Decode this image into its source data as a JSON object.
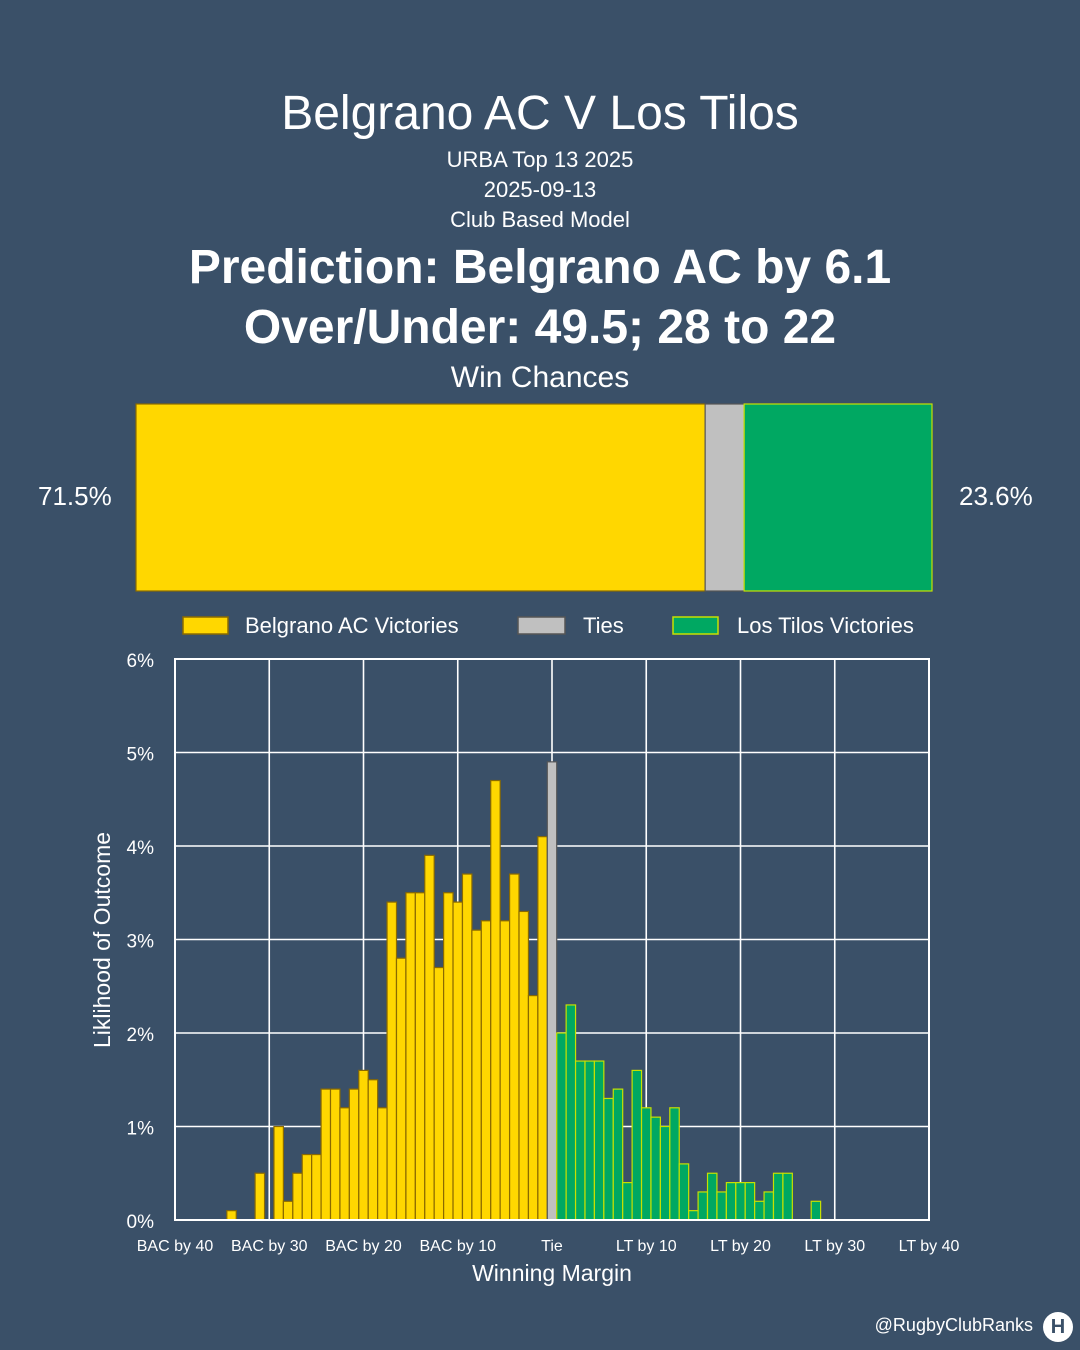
{
  "header": {
    "title": "Belgrano AC V Los Tilos",
    "competition": "URBA Top 13 2025",
    "date": "2025-09-13",
    "model": "Club Based Model",
    "prediction": "Prediction: Belgrano AC by 6.1",
    "over_under": "Over/Under: 49.5; 28 to 22"
  },
  "win_chances": {
    "title": "Win Chances",
    "home_label": "71.5%",
    "away_label": "23.6%",
    "home_fraction": 0.715,
    "tie_fraction": 0.049,
    "away_fraction": 0.236
  },
  "legend": {
    "home": "Belgrano AC Victories",
    "tie": "Ties",
    "away": "Los Tilos Victories"
  },
  "colors": {
    "background": "#3a5068",
    "home": "#ffd700",
    "home_edge": "#8a6a00",
    "tie": "#c0c0c0",
    "tie_edge": "#555555",
    "away": "#00a862",
    "away_edge": "#c8e000",
    "grid": "#ffffff"
  },
  "chart_data": {
    "type": "bar",
    "xlabel": "Winning Margin",
    "ylabel": "Liklihood of Outcome",
    "xlim": [
      -40,
      40
    ],
    "ylim": [
      0,
      6
    ],
    "y_ticks": [
      0,
      1,
      2,
      3,
      4,
      5,
      6
    ],
    "y_tick_labels": [
      "0%",
      "1%",
      "2%",
      "3%",
      "4%",
      "5%",
      "6%"
    ],
    "x_ticks": [
      -40,
      -30,
      -20,
      -10,
      0,
      10,
      20,
      30,
      40
    ],
    "x_tick_labels": [
      "BAC by 40",
      "BAC by 30",
      "BAC by 20",
      "BAC by 10",
      "Tie",
      "LT by 10",
      "LT by 20",
      "LT by 30",
      "LT by 40"
    ],
    "grid": true,
    "legend_position": "top",
    "series": [
      {
        "name": "Belgrano AC Victories",
        "x": [
          -34,
          -31,
          -29,
          -28,
          -27,
          -26,
          -25,
          -24,
          -23,
          -22,
          -21,
          -20,
          -19,
          -18,
          -17,
          -16,
          -15,
          -14,
          -13,
          -12,
          -11,
          -10,
          -9,
          -8,
          -7,
          -6,
          -5,
          -4,
          -3,
          -2,
          -1
        ],
        "values": [
          0.1,
          0.5,
          1.0,
          0.2,
          0.5,
          0.7,
          0.7,
          1.4,
          1.4,
          1.2,
          1.4,
          1.6,
          1.5,
          1.2,
          3.4,
          2.8,
          3.5,
          3.5,
          3.9,
          2.7,
          3.5,
          3.4,
          3.7,
          3.1,
          3.2,
          4.7,
          3.2,
          3.7,
          3.3,
          2.4,
          4.1
        ]
      },
      {
        "name": "Ties",
        "x": [
          0
        ],
        "values": [
          4.9
        ]
      },
      {
        "name": "Los Tilos Victories",
        "x": [
          1,
          2,
          3,
          4,
          5,
          6,
          7,
          8,
          9,
          10,
          11,
          12,
          13,
          14,
          15,
          16,
          17,
          18,
          19,
          20,
          21,
          22,
          23,
          24,
          25,
          28
        ],
        "values": [
          2.0,
          2.3,
          1.7,
          1.7,
          1.7,
          1.3,
          1.4,
          0.4,
          1.6,
          1.2,
          1.1,
          1.0,
          1.2,
          0.6,
          0.1,
          0.3,
          0.5,
          0.3,
          0.4,
          0.4,
          0.4,
          0.2,
          0.3,
          0.5,
          0.5,
          0.2
        ]
      }
    ]
  },
  "footer": {
    "handle": "@RugbyClubRanks",
    "logo_text": "H"
  }
}
